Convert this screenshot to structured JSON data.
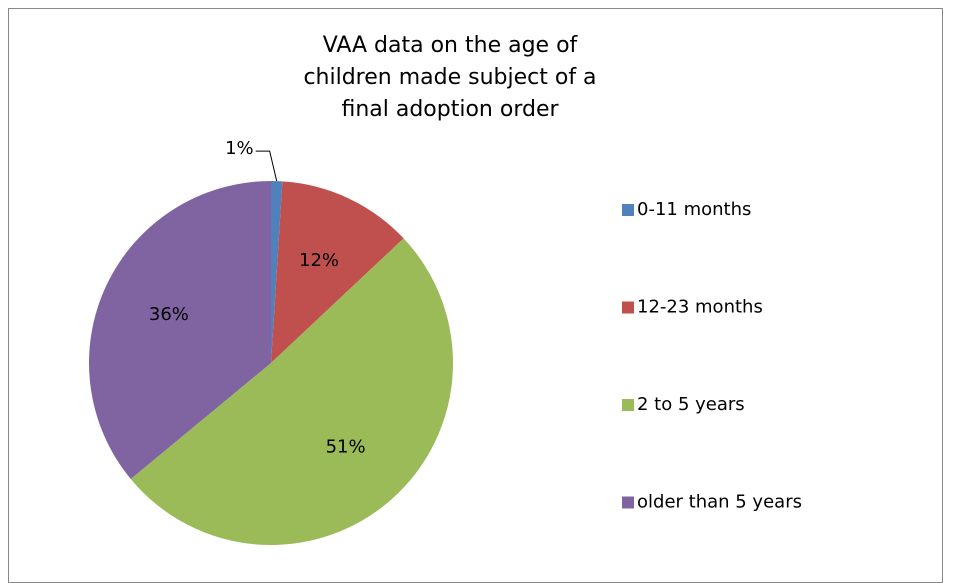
{
  "chart_data": {
    "type": "pie",
    "title": "VAA data on the age of children made subject of a final adoption order",
    "categories": [
      "0-11 months",
      "12-23 months",
      "2 to 5 years",
      "older than 5 years"
    ],
    "values": [
      1,
      12,
      51,
      36
    ],
    "value_labels": [
      "1%",
      "12%",
      "51%",
      "36%"
    ],
    "colors": [
      "#4f81bd",
      "#c0504d",
      "#9bbb59",
      "#8064a2"
    ],
    "legend": "right"
  }
}
